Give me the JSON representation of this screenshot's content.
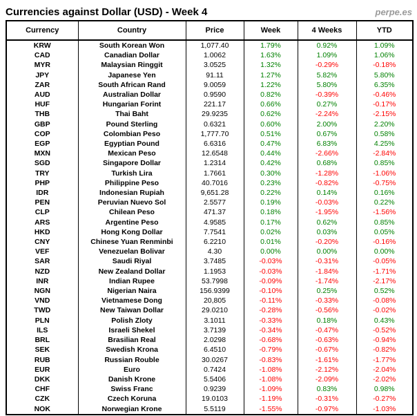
{
  "header": {
    "title": "Currencies against Dollar (USD) - Week 4",
    "brand": "perpe.es"
  },
  "chart_data": {
    "type": "table",
    "title": "Currencies against Dollar (USD) - Week 4",
    "columns": [
      "Currency",
      "Country",
      "Price",
      "Week",
      "4 Weeks",
      "YTD"
    ],
    "colors": {
      "positive": "#008000",
      "negative": "#ff0000",
      "price": "#000000",
      "brand": "#9a9a9a"
    },
    "rows": [
      [
        "KRW",
        "South Korean Won",
        "1,077.40",
        "1.79%",
        "0.92%",
        "1.09%"
      ],
      [
        "CAD",
        "Canadian Dollar",
        "1.0062",
        "1.63%",
        "1.09%",
        "1.06%"
      ],
      [
        "MYR",
        "Malaysian Ringgit",
        "3.0525",
        "1.32%",
        "-0.29%",
        "-0.18%"
      ],
      [
        "JPY",
        "Japanese Yen",
        "91.11",
        "1.27%",
        "5.82%",
        "5.80%"
      ],
      [
        "ZAR",
        "South African Rand",
        "9.0059",
        "1.22%",
        "5.80%",
        "6.35%"
      ],
      [
        "AUD",
        "Australian Dollar",
        "0.9590",
        "0.82%",
        "-0.39%",
        "-0.46%"
      ],
      [
        "HUF",
        "Hungarian Forint",
        "221.17",
        "0.66%",
        "0.27%",
        "-0.17%"
      ],
      [
        "THB",
        "Thai Baht",
        "29.9235",
        "0.62%",
        "-2.24%",
        "-2.15%"
      ],
      [
        "GBP",
        "Pound Sterling",
        "0.6321",
        "0.60%",
        "2.00%",
        "2.20%"
      ],
      [
        "COP",
        "Colombian Peso",
        "1,777.70",
        "0.51%",
        "0.67%",
        "0.58%"
      ],
      [
        "EGP",
        "Egyptian Pound",
        "6.6316",
        "0.47%",
        "6.83%",
        "4.25%"
      ],
      [
        "MXN",
        "Mexican Peso",
        "12.6548",
        "0.44%",
        "-2.66%",
        "-2.84%"
      ],
      [
        "SGD",
        "Singapore Dollar",
        "1.2314",
        "0.42%",
        "0.68%",
        "0.85%"
      ],
      [
        "TRY",
        "Turkish Lira",
        "1.7661",
        "0.30%",
        "-1.28%",
        "-1.06%"
      ],
      [
        "PHP",
        "Philippine Peso",
        "40.7016",
        "0.23%",
        "-0.82%",
        "-0.75%"
      ],
      [
        "IDR",
        "Indonesian Rupiah",
        "9,651.28",
        "0.22%",
        "0.14%",
        "0.16%"
      ],
      [
        "PEN",
        "Peruvian Nuevo Sol",
        "2.5577",
        "0.19%",
        "-0.03%",
        "0.22%"
      ],
      [
        "CLP",
        "Chilean Peso",
        "471.37",
        "0.18%",
        "-1.95%",
        "-1.56%"
      ],
      [
        "ARS",
        "Argentine Peso",
        "4.9585",
        "0.17%",
        "0.62%",
        "0.85%"
      ],
      [
        "HKD",
        "Hong Kong Dollar",
        "7.7541",
        "0.02%",
        "0.03%",
        "0.05%"
      ],
      [
        "CNY",
        "Chinese Yuan Renminbi",
        "6.2210",
        "0.01%",
        "-0.20%",
        "-0.16%"
      ],
      [
        "VEF",
        "Venezuelan Bolivar",
        "4.30",
        "0.00%",
        "0.00%",
        "0.00%"
      ],
      [
        "SAR",
        "Saudi Riyal",
        "3.7485",
        "-0.03%",
        "-0.31%",
        "-0.05%"
      ],
      [
        "NZD",
        "New Zealand Dollar",
        "1.1953",
        "-0.03%",
        "-1.84%",
        "-1.71%"
      ],
      [
        "INR",
        "Indian Rupee",
        "53.7998",
        "-0.09%",
        "-1.74%",
        "-2.17%"
      ],
      [
        "NGN",
        "Nigerian Naira",
        "156.9399",
        "-0.10%",
        "0.25%",
        "0.52%"
      ],
      [
        "VND",
        "Vietnamese Dong",
        "20,805",
        "-0.11%",
        "-0.33%",
        "-0.08%"
      ],
      [
        "TWD",
        "New Taiwan Dollar",
        "29.0210",
        "-0.28%",
        "-0.56%",
        "-0.02%"
      ],
      [
        "PLN",
        "Polish Zloty",
        "3.1011",
        "-0.33%",
        "0.18%",
        "0.43%"
      ],
      [
        "ILS",
        "Israeli Shekel",
        "3.7139",
        "-0.34%",
        "-0.47%",
        "-0.52%"
      ],
      [
        "BRL",
        "Brasilian Real",
        "2.0298",
        "-0.68%",
        "-0.63%",
        "-0.94%"
      ],
      [
        "SEK",
        "Swedish Krona",
        "6.4510",
        "-0.79%",
        "-0.67%",
        "-0.82%"
      ],
      [
        "RUB",
        "Russian Rouble",
        "30.0267",
        "-0.83%",
        "-1.61%",
        "-1.77%"
      ],
      [
        "EUR",
        "Euro",
        "0.7424",
        "-1.08%",
        "-2.12%",
        "-2.04%"
      ],
      [
        "DKK",
        "Danish Krone",
        "5.5406",
        "-1.08%",
        "-2.09%",
        "-2.02%"
      ],
      [
        "CHF",
        "Swiss Franc",
        "0.9239",
        "-1.09%",
        "0.83%",
        "0.98%"
      ],
      [
        "CZK",
        "Czech Koruna",
        "19.0103",
        "-1.19%",
        "-0.31%",
        "-0.27%"
      ],
      [
        "NOK",
        "Norwegian Krone",
        "5.5119",
        "-1.55%",
        "-0.97%",
        "-1.03%"
      ]
    ]
  }
}
